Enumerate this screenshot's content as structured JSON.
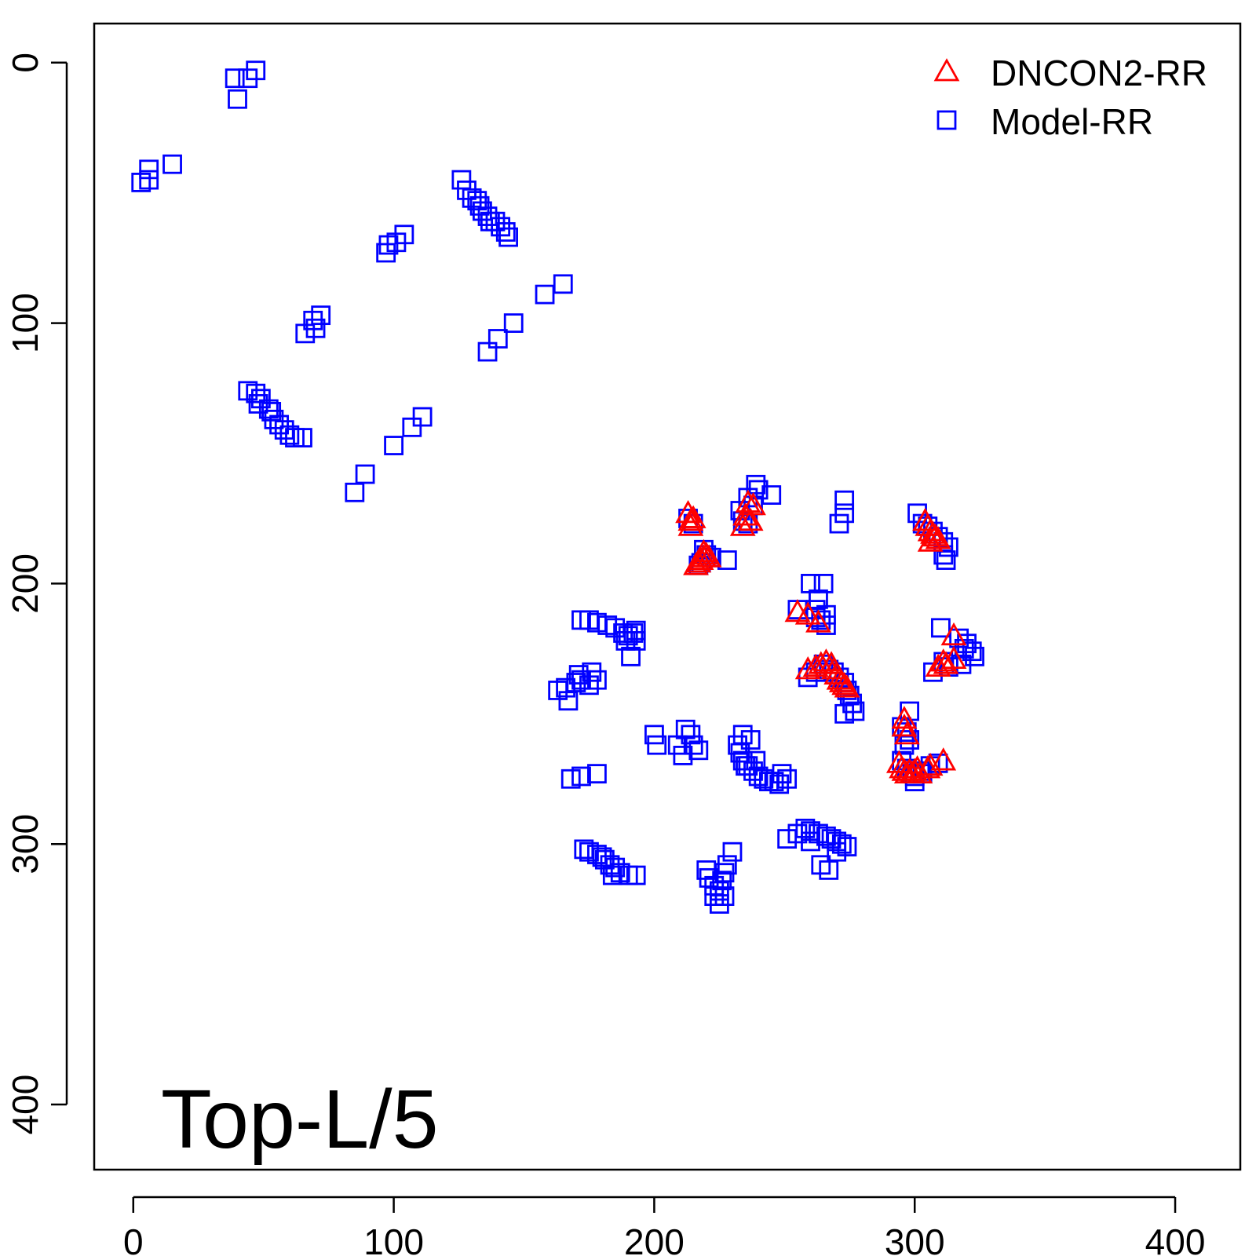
{
  "chart_data": {
    "type": "scatter",
    "annotation": "Top-L/5",
    "xlim": [
      -15,
      425
    ],
    "ylim": [
      425,
      -15
    ],
    "y_reversed": true,
    "x_ticks": [
      "0",
      "100",
      "200",
      "300",
      "400"
    ],
    "y_ticks": [
      "0",
      "100",
      "200",
      "300",
      "400"
    ],
    "legend_position": "top-right",
    "series": [
      {
        "name": "DNCON2-RR",
        "marker": "triangle",
        "color": "#FF0000",
        "points": [
          [
            213,
            173
          ],
          [
            214,
            176
          ],
          [
            215,
            175
          ],
          [
            214,
            178
          ],
          [
            236,
            169
          ],
          [
            238,
            170
          ],
          [
            235,
            174
          ],
          [
            237,
            176
          ],
          [
            234,
            178
          ],
          [
            218,
            191
          ],
          [
            219,
            190
          ],
          [
            220,
            189
          ],
          [
            217,
            192
          ],
          [
            221,
            190
          ],
          [
            219,
            188
          ],
          [
            216,
            193
          ],
          [
            304,
            176
          ],
          [
            305,
            178
          ],
          [
            306,
            180
          ],
          [
            307,
            181
          ],
          [
            308,
            182
          ],
          [
            309,
            183
          ],
          [
            306,
            184
          ],
          [
            255,
            211
          ],
          [
            259,
            212
          ],
          [
            263,
            215
          ],
          [
            315,
            220
          ],
          [
            315,
            229
          ],
          [
            312,
            231
          ],
          [
            309,
            232
          ],
          [
            311,
            230
          ],
          [
            259,
            233
          ],
          [
            262,
            232
          ],
          [
            264,
            231
          ],
          [
            266,
            230
          ],
          [
            268,
            231
          ],
          [
            269,
            233
          ],
          [
            270,
            235
          ],
          [
            271,
            237
          ],
          [
            272,
            238
          ],
          [
            273,
            239
          ],
          [
            274,
            240
          ],
          [
            296,
            252
          ],
          [
            296,
            255
          ],
          [
            297,
            258
          ],
          [
            294,
            269
          ],
          [
            295,
            271
          ],
          [
            296,
            272
          ],
          [
            297,
            273
          ],
          [
            298,
            272
          ],
          [
            299,
            273
          ],
          [
            300,
            272
          ],
          [
            301,
            271
          ],
          [
            302,
            273
          ],
          [
            305,
            271
          ],
          [
            311,
            268
          ],
          [
            306,
            270
          ]
        ]
      },
      {
        "name": "Model-RR",
        "marker": "square",
        "color": "#0000FF",
        "points": [
          [
            47,
            3
          ],
          [
            44,
            6
          ],
          [
            39,
            6
          ],
          [
            40,
            14
          ],
          [
            15,
            39
          ],
          [
            6,
            41
          ],
          [
            6,
            45
          ],
          [
            3,
            46
          ],
          [
            126,
            45
          ],
          [
            128,
            49
          ],
          [
            130,
            52
          ],
          [
            132,
            53
          ],
          [
            133,
            55
          ],
          [
            134,
            57
          ],
          [
            136,
            59
          ],
          [
            137,
            61
          ],
          [
            139,
            61
          ],
          [
            141,
            63
          ],
          [
            143,
            65
          ],
          [
            144,
            67
          ],
          [
            104,
            66
          ],
          [
            101,
            69
          ],
          [
            98,
            70
          ],
          [
            97,
            73
          ],
          [
            165,
            85
          ],
          [
            158,
            89
          ],
          [
            72,
            97
          ],
          [
            69,
            99
          ],
          [
            70,
            102
          ],
          [
            66,
            104
          ],
          [
            146,
            100
          ],
          [
            140,
            106
          ],
          [
            136,
            111
          ],
          [
            44,
            126
          ],
          [
            47,
            127
          ],
          [
            49,
            129
          ],
          [
            48,
            131
          ],
          [
            52,
            133
          ],
          [
            53,
            134
          ],
          [
            54,
            137
          ],
          [
            56,
            139
          ],
          [
            58,
            141
          ],
          [
            60,
            143
          ],
          [
            62,
            144
          ],
          [
            65,
            144
          ],
          [
            111,
            136
          ],
          [
            107,
            140
          ],
          [
            100,
            147
          ],
          [
            89,
            158
          ],
          [
            85,
            165
          ],
          [
            239,
            162
          ],
          [
            240,
            164
          ],
          [
            245,
            166
          ],
          [
            236,
            167
          ],
          [
            238,
            170
          ],
          [
            233,
            172
          ],
          [
            234,
            176
          ],
          [
            236,
            177
          ],
          [
            273,
            168
          ],
          [
            273,
            173
          ],
          [
            271,
            177
          ],
          [
            213,
            175
          ],
          [
            215,
            177
          ],
          [
            219,
            187
          ],
          [
            220,
            189
          ],
          [
            222,
            190
          ],
          [
            228,
            191
          ],
          [
            217,
            193
          ],
          [
            218,
            192
          ],
          [
            301,
            173
          ],
          [
            303,
            177
          ],
          [
            305,
            178
          ],
          [
            307,
            180
          ],
          [
            309,
            182
          ],
          [
            311,
            184
          ],
          [
            313,
            186
          ],
          [
            311,
            189
          ],
          [
            312,
            191
          ],
          [
            260,
            200
          ],
          [
            265,
            200
          ],
          [
            263,
            206
          ],
          [
            255,
            210
          ],
          [
            262,
            210
          ],
          [
            266,
            212
          ],
          [
            264,
            214
          ],
          [
            266,
            216
          ],
          [
            262,
            213
          ],
          [
            172,
            214
          ],
          [
            175,
            214
          ],
          [
            178,
            215
          ],
          [
            182,
            216
          ],
          [
            185,
            217
          ],
          [
            188,
            219
          ],
          [
            190,
            220
          ],
          [
            192,
            219
          ],
          [
            193,
            218
          ],
          [
            189,
            222
          ],
          [
            193,
            222
          ],
          [
            191,
            228
          ],
          [
            310,
            217
          ],
          [
            317,
            221
          ],
          [
            319,
            225
          ],
          [
            320,
            223
          ],
          [
            322,
            226
          ],
          [
            323,
            228
          ],
          [
            311,
            230
          ],
          [
            313,
            232
          ],
          [
            318,
            231
          ],
          [
            307,
            234
          ],
          [
            171,
            235
          ],
          [
            172,
            237
          ],
          [
            175,
            239
          ],
          [
            178,
            237
          ],
          [
            176,
            234
          ],
          [
            170,
            238
          ],
          [
            166,
            240
          ],
          [
            163,
            241
          ],
          [
            167,
            245
          ],
          [
            259,
            236
          ],
          [
            262,
            234
          ],
          [
            265,
            231
          ],
          [
            267,
            233
          ],
          [
            269,
            234
          ],
          [
            271,
            236
          ],
          [
            273,
            238
          ],
          [
            274,
            241
          ],
          [
            275,
            243
          ],
          [
            276,
            246
          ],
          [
            277,
            249
          ],
          [
            273,
            250
          ],
          [
            295,
            255
          ],
          [
            298,
            249
          ],
          [
            297,
            257
          ],
          [
            298,
            260
          ],
          [
            296,
            262
          ],
          [
            200,
            258
          ],
          [
            201,
            262
          ],
          [
            212,
            256
          ],
          [
            214,
            258
          ],
          [
            215,
            262
          ],
          [
            217,
            264
          ],
          [
            209,
            262
          ],
          [
            211,
            266
          ],
          [
            234,
            258
          ],
          [
            237,
            260
          ],
          [
            232,
            262
          ],
          [
            233,
            265
          ],
          [
            234,
            268
          ],
          [
            236,
            270
          ],
          [
            238,
            272
          ],
          [
            240,
            274
          ],
          [
            242,
            275
          ],
          [
            244,
            276
          ],
          [
            246,
            276
          ],
          [
            248,
            277
          ],
          [
            251,
            275
          ],
          [
            249,
            273
          ],
          [
            239,
            268
          ],
          [
            235,
            270
          ],
          [
            295,
            268
          ],
          [
            297,
            271
          ],
          [
            299,
            273
          ],
          [
            300,
            274
          ],
          [
            302,
            272
          ],
          [
            303,
            273
          ],
          [
            306,
            270
          ],
          [
            309,
            269
          ],
          [
            300,
            276
          ],
          [
            168,
            275
          ],
          [
            172,
            274
          ],
          [
            178,
            273
          ],
          [
            251,
            298
          ],
          [
            255,
            296
          ],
          [
            258,
            294
          ],
          [
            260,
            295
          ],
          [
            263,
            296
          ],
          [
            266,
            297
          ],
          [
            268,
            298
          ],
          [
            270,
            299
          ],
          [
            272,
            300
          ],
          [
            274,
            301
          ],
          [
            270,
            303
          ],
          [
            267,
            310
          ],
          [
            264,
            308
          ],
          [
            260,
            299
          ],
          [
            173,
            302
          ],
          [
            175,
            303
          ],
          [
            178,
            304
          ],
          [
            180,
            305
          ],
          [
            181,
            306
          ],
          [
            183,
            308
          ],
          [
            185,
            309
          ],
          [
            187,
            311
          ],
          [
            190,
            312
          ],
          [
            193,
            312
          ],
          [
            184,
            312
          ],
          [
            230,
            303
          ],
          [
            228,
            308
          ],
          [
            227,
            311
          ],
          [
            226,
            314
          ],
          [
            225,
            318
          ],
          [
            227,
            320
          ],
          [
            220,
            310
          ],
          [
            221,
            313
          ],
          [
            223,
            316
          ],
          [
            223,
            320
          ],
          [
            225,
            323
          ]
        ]
      }
    ]
  }
}
